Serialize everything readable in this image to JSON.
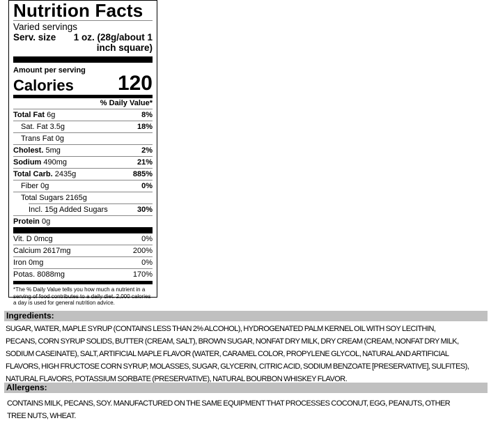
{
  "label": {
    "title": "Nutrition Facts",
    "servings": "Varied servings",
    "serv_size_label": "Serv. size",
    "serv_size_value": "1 oz. (28g/about 1 inch square)",
    "amount_per_serving": "Amount per serving",
    "calories_label": "Calories",
    "calories_value": "120",
    "daily_value_header": "% Daily Value*",
    "nutrients": [
      {
        "name": "Total Fat",
        "amount": "6g",
        "dv": "8%"
      },
      {
        "name": "Sat. Fat",
        "amount": "3.5g",
        "dv": "18%"
      },
      {
        "name": "Trans Fat",
        "amount": "0g",
        "dv": ""
      },
      {
        "name": "Cholest.",
        "amount": "5mg",
        "dv": "2%"
      },
      {
        "name": "Sodium",
        "amount": "490mg",
        "dv": "21%"
      },
      {
        "name": "Total Carb.",
        "amount": "2435g",
        "dv": "885%"
      },
      {
        "name": "Fiber",
        "amount": "0g",
        "dv": "0%"
      },
      {
        "name": "Total Sugars",
        "amount": "2165g",
        "dv": ""
      },
      {
        "name": "Incl. 15g Added Sugars",
        "amount": "",
        "dv": "30%"
      },
      {
        "name": "Protein",
        "amount": "0g",
        "dv": ""
      }
    ],
    "vitamins": [
      {
        "text": "Vit. D 0mcg",
        "dv": "0%"
      },
      {
        "text": "Calcium 2617mg",
        "dv": "200%"
      },
      {
        "text": "Iron 0mg",
        "dv": "0%"
      },
      {
        "text": "Potas. 8088mg",
        "dv": "170%"
      }
    ],
    "footnote": "*The % Daily Value tells you how much a nutrient in a serving of food contributes to a daily diet. 2,000 calories a day is used for general nutrition advice."
  },
  "ingredients": {
    "header": "Ingredients:",
    "lines": [
      "SUGAR, WATER, MAPLE SYRUP (CONTAINS LESS THAN 2% ALCOHOL), HYDROGENATED PALM KERNEL OIL WITH SOY LECITHIN,",
      "PECANS, CORN SYRUP SOLIDS, BUTTER (CREAM, SALT), BROWN SUGAR, NONFAT DRY MILK, DRY CREAM (CREAM, NONFAT DRY MILK,",
      "SODIUM CASEINATE), SALT, ARTIFICIAL MAPLE FLAVOR (WATER, CARAMEL COLOR, PROPYLENE GLYCOL, NATURAL AND ARTIFICIAL",
      "FLAVORS, HIGH FRUCTOSE CORN SYRUP, MOLASSES, SUGAR, GLYCERIN, CITRIC ACID, SODIUM BENZOATE [PRESERVATIVE], SULFITES),",
      "NATURAL FLAVORS, POTASSIUM SORBATE (PRESERVATIVE), NATURAL BOURBON WHISKEY FLAVOR."
    ]
  },
  "allergens": {
    "header": "Allergens:",
    "lines": [
      "CONTAINS MILK, PECANS, SOY. MANUFACTURED ON THE SAME EQUIPMENT THAT PROCESSES COCONUT, EGG, PEANUTS, OTHER",
      "TREE NUTS, WHEAT."
    ]
  },
  "colors": {
    "section_header_bg": "#c0c0c0",
    "label_rule": "#888888"
  }
}
